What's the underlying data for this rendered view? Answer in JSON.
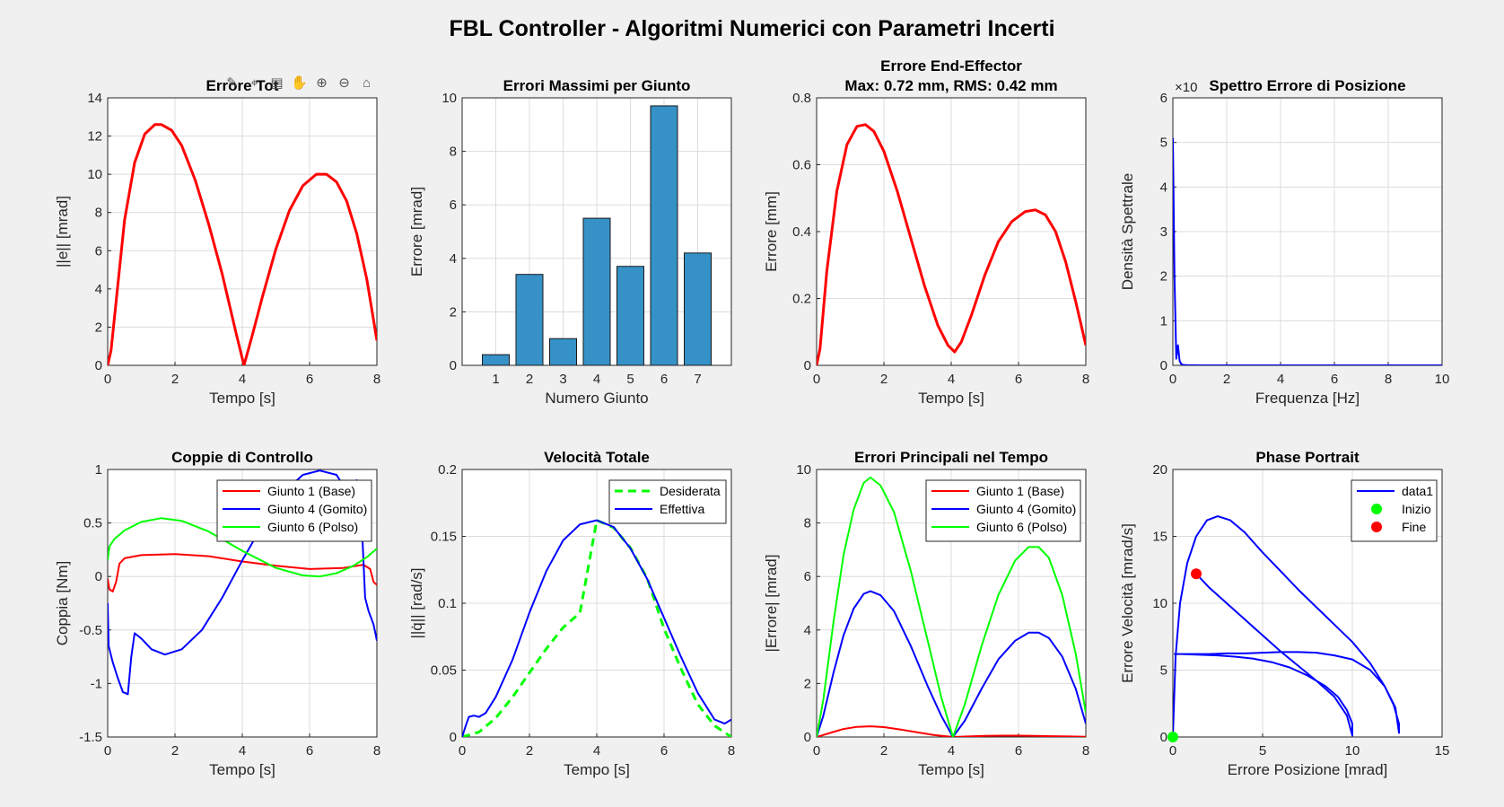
{
  "figure_title": "FBL Controller - Algoritmi Numerici con Parametri Incerti",
  "toolbar": [
    {
      "name": "brush-icon",
      "glyph": "✎"
    },
    {
      "name": "data-tips-icon",
      "glyph": "⌖"
    },
    {
      "name": "copy-icon",
      "glyph": "▤"
    },
    {
      "name": "pan-hand-icon",
      "glyph": "✋"
    },
    {
      "name": "zoom-in-icon",
      "glyph": "⊕"
    },
    {
      "name": "zoom-out-icon",
      "glyph": "⊖"
    },
    {
      "name": "home-icon",
      "glyph": "⌂"
    }
  ],
  "chart_data": [
    {
      "id": "p1",
      "type": "line",
      "title": "Errore Tot",
      "xlabel": "Tempo [s]",
      "ylabel": "||e|| [mrad]",
      "xlim": [
        0,
        8
      ],
      "ylim": [
        0,
        14
      ],
      "xticks": [
        0,
        2,
        4,
        6,
        8
      ],
      "yticks": [
        0,
        2,
        4,
        6,
        8,
        10,
        12,
        14
      ],
      "grid": true,
      "series": [
        {
          "color": "#ff0000",
          "width": 3,
          "x": [
            0,
            0.1,
            0.3,
            0.5,
            0.8,
            1.1,
            1.4,
            1.6,
            1.9,
            2.2,
            2.6,
            3.0,
            3.4,
            3.8,
            4.05,
            4.3,
            4.6,
            5.0,
            5.4,
            5.8,
            6.2,
            6.5,
            6.8,
            7.1,
            7.4,
            7.7,
            8.0
          ],
          "y": [
            0,
            0.8,
            4.2,
            7.6,
            10.6,
            12.1,
            12.6,
            12.6,
            12.3,
            11.5,
            9.7,
            7.4,
            4.8,
            1.8,
            0,
            1.6,
            3.6,
            6.1,
            8.1,
            9.4,
            10.0,
            10.0,
            9.6,
            8.6,
            6.9,
            4.5,
            1.3
          ]
        }
      ]
    },
    {
      "id": "p2",
      "type": "bar",
      "title": "Errori Massimi per Giunto",
      "xlabel": "Numero Giunto",
      "ylabel": "Errore [mrad]",
      "categories": [
        "1",
        "2",
        "3",
        "4",
        "5",
        "6",
        "7"
      ],
      "values": [
        0.4,
        3.4,
        1.0,
        5.5,
        3.7,
        9.7,
        4.2
      ],
      "xlim": [
        0,
        8
      ],
      "ylim": [
        0,
        10
      ],
      "yticks": [
        0,
        2,
        4,
        6,
        8,
        10
      ],
      "grid": true,
      "bar_color": "#3591c6"
    },
    {
      "id": "p3",
      "type": "line",
      "title": [
        "Errore End-Effector",
        "Max: 0.72 mm, RMS: 0.42 mm"
      ],
      "xlabel": "Tempo [s]",
      "ylabel": "Errore [mm]",
      "xlim": [
        0,
        8
      ],
      "ylim": [
        0,
        0.8
      ],
      "xticks": [
        0,
        2,
        4,
        6,
        8
      ],
      "yticks": [
        0,
        0.2,
        0.4,
        0.6,
        0.8
      ],
      "grid": true,
      "series": [
        {
          "color": "#ff0000",
          "width": 3,
          "x": [
            0,
            0.1,
            0.3,
            0.6,
            0.9,
            1.2,
            1.45,
            1.7,
            2.0,
            2.4,
            2.8,
            3.2,
            3.6,
            3.9,
            4.1,
            4.3,
            4.6,
            5.0,
            5.4,
            5.8,
            6.2,
            6.5,
            6.8,
            7.1,
            7.4,
            7.7,
            8.0
          ],
          "y": [
            0,
            0.05,
            0.28,
            0.52,
            0.66,
            0.715,
            0.72,
            0.7,
            0.64,
            0.52,
            0.38,
            0.24,
            0.12,
            0.06,
            0.04,
            0.07,
            0.15,
            0.27,
            0.37,
            0.43,
            0.46,
            0.465,
            0.45,
            0.4,
            0.31,
            0.19,
            0.06
          ]
        }
      ]
    },
    {
      "id": "p4",
      "type": "line",
      "title": "Spettro Errore di Posizione",
      "xlabel": "Frequenza [Hz]",
      "ylabel": "Densità Spettrale",
      "exponent_label": "×10",
      "xlim": [
        0,
        10
      ],
      "ylim": [
        0,
        6
      ],
      "xticks": [
        0,
        2,
        4,
        6,
        8,
        10
      ],
      "yticks": [
        0,
        1,
        2,
        3,
        4,
        5,
        6
      ],
      "grid": true,
      "series": [
        {
          "color": "#0000ff",
          "width": 2,
          "x": [
            0,
            0.06,
            0.125,
            0.19,
            0.25,
            0.31,
            0.375,
            0.5,
            1,
            2,
            4,
            6,
            8,
            10
          ],
          "y": [
            5.1,
            2.0,
            0.15,
            0.45,
            0.1,
            0.03,
            0.01,
            0.005,
            0,
            0,
            0,
            0,
            0,
            0
          ]
        }
      ]
    },
    {
      "id": "p5",
      "type": "line",
      "title": "Coppie di Controllo",
      "xlabel": "Tempo [s]",
      "ylabel": "Coppia [Nm]",
      "xlim": [
        0,
        8
      ],
      "ylim": [
        -1.5,
        1
      ],
      "xticks": [
        0,
        2,
        4,
        6,
        8
      ],
      "yticks": [
        -1.5,
        -1,
        -0.5,
        0,
        0.5,
        1
      ],
      "grid": true,
      "legend_position": "top-right",
      "series": [
        {
          "name": "Giunto 1 (Base)",
          "color": "#ff0000",
          "width": 2,
          "x": [
            0,
            0.05,
            0.15,
            0.25,
            0.35,
            0.5,
            1,
            2,
            3,
            4,
            5,
            6,
            7,
            7.6,
            7.8,
            7.9,
            8.0
          ],
          "y": [
            -0.02,
            -0.12,
            -0.14,
            -0.05,
            0.12,
            0.17,
            0.2,
            0.21,
            0.19,
            0.14,
            0.1,
            0.07,
            0.08,
            0.11,
            0.07,
            -0.05,
            -0.08
          ]
        },
        {
          "name": "Giunto 4 (Gomito)",
          "color": "#0000ff",
          "width": 2,
          "x": [
            0,
            0.03,
            0.15,
            0.3,
            0.45,
            0.6,
            0.7,
            0.8,
            1.0,
            1.3,
            1.7,
            2.2,
            2.8,
            3.4,
            4.0,
            4.6,
            5.2,
            5.8,
            6.3,
            6.8,
            7.2,
            7.4,
            7.55,
            7.65,
            7.75,
            7.9,
            8.0
          ],
          "y": [
            -0.25,
            -0.65,
            -0.8,
            -0.95,
            -1.08,
            -1.1,
            -0.75,
            -0.53,
            -0.58,
            -0.68,
            -0.73,
            -0.68,
            -0.5,
            -0.2,
            0.15,
            0.48,
            0.78,
            0.95,
            0.99,
            0.95,
            0.75,
            0.9,
            0.5,
            -0.2,
            -0.32,
            -0.45,
            -0.6
          ]
        },
        {
          "name": "Giunto 6 (Polso)",
          "color": "#00ff00",
          "width": 2,
          "x": [
            0,
            0.05,
            0.2,
            0.5,
            1.0,
            1.6,
            2.2,
            3.0,
            4.0,
            5.0,
            5.8,
            6.3,
            6.8,
            7.3,
            7.7,
            8.0
          ],
          "y": [
            0.15,
            0.28,
            0.35,
            0.43,
            0.51,
            0.545,
            0.52,
            0.42,
            0.24,
            0.08,
            0.01,
            0.0,
            0.03,
            0.1,
            0.18,
            0.26
          ]
        }
      ]
    },
    {
      "id": "p6",
      "type": "line",
      "title": "Velocità Totale",
      "xlabel": "Tempo [s]",
      "ylabel": "||q̇|| [rad/s]",
      "xlim": [
        0,
        8
      ],
      "ylim": [
        0,
        0.2
      ],
      "xticks": [
        0,
        2,
        4,
        6,
        8
      ],
      "yticks": [
        0,
        0.05,
        0.1,
        0.15,
        0.2
      ],
      "grid": true,
      "legend_position": "top-right",
      "series": [
        {
          "name": "Desiderata",
          "color": "#00ff00",
          "width": 3,
          "dash": true,
          "x": [
            0,
            0.5,
            1,
            1.5,
            2,
            2.5,
            3,
            3.5,
            4,
            4.5,
            5,
            5.5,
            6,
            6.5,
            7,
            7.5,
            8
          ],
          "y": [
            0,
            0.0037,
            0.0142,
            0.0299,
            0.048,
            0.066,
            0.0818,
            0.0929,
            0.162,
            0.1566,
            0.1414,
            0.1185,
            0.081,
            0.0511,
            0.0245,
            0.0084,
            0.0
          ]
        },
        {
          "name": "Effettiva",
          "color": "#0000ff",
          "width": 2,
          "x": [
            0,
            0.1,
            0.2,
            0.35,
            0.5,
            0.7,
            1,
            1.5,
            2,
            2.5,
            3,
            3.5,
            4,
            4.5,
            5,
            5.5,
            6,
            6.5,
            7,
            7.5,
            7.8,
            8
          ],
          "y": [
            0,
            0.008,
            0.015,
            0.016,
            0.015,
            0.018,
            0.03,
            0.058,
            0.093,
            0.124,
            0.147,
            0.159,
            0.162,
            0.157,
            0.141,
            0.118,
            0.089,
            0.06,
            0.033,
            0.013,
            0.01,
            0.013
          ]
        }
      ]
    },
    {
      "id": "p7",
      "type": "line",
      "title": "Errori Principali nel Tempo",
      "xlabel": "Tempo [s]",
      "ylabel": "|Errore| [mrad]",
      "xlim": [
        0,
        8
      ],
      "ylim": [
        0,
        10
      ],
      "xticks": [
        0,
        2,
        4,
        6,
        8
      ],
      "yticks": [
        0,
        2,
        4,
        6,
        8,
        10
      ],
      "grid": true,
      "legend_position": "top-right",
      "series": [
        {
          "name": "Giunto 1 (Base)",
          "color": "#ff0000",
          "width": 2,
          "x": [
            0,
            0.4,
            0.8,
            1.2,
            1.6,
            2.0,
            2.5,
            3.0,
            3.5,
            4.05,
            4.5,
            5.0,
            5.5,
            6.0,
            6.5,
            7.0,
            7.5,
            8.0
          ],
          "y": [
            0,
            0.15,
            0.3,
            0.38,
            0.4,
            0.37,
            0.28,
            0.17,
            0.07,
            0,
            0.02,
            0.04,
            0.05,
            0.05,
            0.04,
            0.03,
            0.02,
            0.01
          ]
        },
        {
          "name": "Giunto 4 (Gomito)",
          "color": "#0000ff",
          "width": 2,
          "x": [
            0,
            0.2,
            0.5,
            0.8,
            1.1,
            1.4,
            1.6,
            1.9,
            2.3,
            2.8,
            3.3,
            3.7,
            4.05,
            4.4,
            4.9,
            5.4,
            5.9,
            6.3,
            6.6,
            6.9,
            7.3,
            7.7,
            8.0
          ],
          "y": [
            0,
            0.8,
            2.4,
            3.8,
            4.8,
            5.35,
            5.45,
            5.3,
            4.7,
            3.4,
            1.9,
            0.8,
            0,
            0.6,
            1.8,
            2.9,
            3.6,
            3.9,
            3.9,
            3.7,
            3.0,
            1.8,
            0.5
          ]
        },
        {
          "name": "Giunto 6 (Polso)",
          "color": "#00ff00",
          "width": 2,
          "x": [
            0,
            0.2,
            0.5,
            0.8,
            1.1,
            1.4,
            1.6,
            1.9,
            2.3,
            2.8,
            3.3,
            3.7,
            4.05,
            4.4,
            4.9,
            5.4,
            5.9,
            6.3,
            6.6,
            6.9,
            7.3,
            7.7,
            8.0
          ],
          "y": [
            0,
            1.4,
            4.3,
            6.8,
            8.5,
            9.5,
            9.7,
            9.4,
            8.4,
            6.2,
            3.6,
            1.5,
            0,
            1.2,
            3.4,
            5.3,
            6.6,
            7.1,
            7.1,
            6.7,
            5.3,
            3.1,
            0.9
          ]
        }
      ]
    },
    {
      "id": "p8",
      "type": "line",
      "title": "Phase Portrait",
      "xlabel": "Errore Posizione [mrad]",
      "ylabel": "Errore Velocità [mrad/s]",
      "xlim": [
        0,
        15
      ],
      "ylim": [
        0,
        20
      ],
      "xticks": [
        0,
        5,
        10,
        15
      ],
      "yticks": [
        0,
        5,
        10,
        15,
        20
      ],
      "grid": true,
      "legend_position": "top-right",
      "series": [
        {
          "name": "data1",
          "color": "#0000ff",
          "width": 2,
          "x": [
            0,
            0.15,
            0.4,
            0.8,
            1.3,
            1.9,
            2.5,
            3.2,
            4.0,
            5.0,
            6.0,
            7.0,
            8.0,
            9.0,
            10.0,
            11.0,
            11.8,
            12.3,
            12.6,
            12.6,
            12.4,
            11.8,
            11.0,
            10.0,
            9.0,
            8.0,
            7.0,
            6.0,
            5.0,
            4.0,
            3.0,
            2.0,
            1.0,
            0.3,
            0.1,
            0.5,
            1.5,
            2.5,
            3.5,
            4.5,
            5.5,
            6.5,
            7.5,
            8.5,
            9.2,
            9.7,
            10.0,
            10.0,
            9.7,
            9.0,
            8.0,
            7.0,
            6.0,
            5.0,
            4.0,
            3.0,
            2.0,
            1.3
          ],
          "y": [
            0,
            6.0,
            10.0,
            13.0,
            15.0,
            16.2,
            16.5,
            16.2,
            15.3,
            13.8,
            12.4,
            11.0,
            9.7,
            8.4,
            7.1,
            5.5,
            3.8,
            2.4,
            1.0,
            0.3,
            2.2,
            3.8,
            5.0,
            5.8,
            6.1,
            6.3,
            6.35,
            6.35,
            6.3,
            6.25,
            6.25,
            6.2,
            6.2,
            6.2,
            6.2,
            6.2,
            6.15,
            6.1,
            6.0,
            5.85,
            5.6,
            5.2,
            4.6,
            3.8,
            3.0,
            2.0,
            1.0,
            0.1,
            1.6,
            3.0,
            4.2,
            5.3,
            6.4,
            7.6,
            8.8,
            10.0,
            11.2,
            12.2
          ]
        },
        {
          "name": "Inizio",
          "type": "marker",
          "color": "#00ff00",
          "x": [
            0
          ],
          "y": [
            0
          ]
        },
        {
          "name": "Fine",
          "type": "marker",
          "color": "#ff0000",
          "x": [
            1.3
          ],
          "y": [
            12.2
          ]
        }
      ]
    }
  ]
}
